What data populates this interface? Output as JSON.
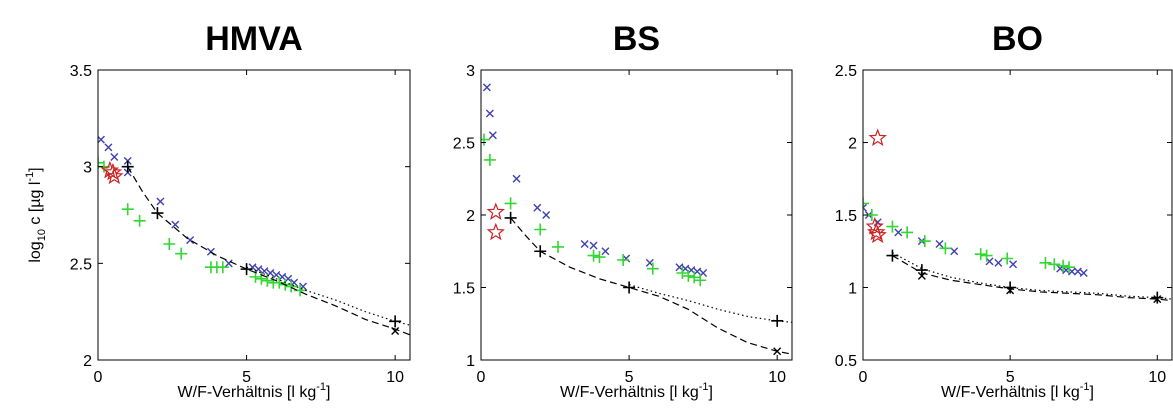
{
  "figure": {
    "ylabel": {
      "base": "log",
      "sub": "10",
      "rest": " c [µg l",
      "sup": "-1",
      "close": "]"
    },
    "xlabel": {
      "text": "W/F-Verhältnis [l kg",
      "sup": "-1",
      "close": "]"
    }
  },
  "colors": {
    "blue_x": "#4040b0",
    "green_plus": "#33d633",
    "red_star": "#cc2222",
    "black": "#000000"
  },
  "chart_data": [
    {
      "type": "scatter",
      "title": "HMVA",
      "xlim": [
        0,
        10.5
      ],
      "ylim": [
        2,
        3.5
      ],
      "xticks": [
        0,
        5,
        10
      ],
      "xtick_labels": [
        "0",
        "5",
        "10"
      ],
      "yticks": [
        2,
        2.5,
        3,
        3.5
      ],
      "ytick_labels": [
        "2",
        "2.5",
        "3",
        "3.5"
      ],
      "series": [
        {
          "marker": "x",
          "color": "#4040b0",
          "points": [
            [
              0.1,
              3.14
            ],
            [
              0.35,
              3.1
            ],
            [
              0.55,
              3.05
            ],
            [
              1.0,
              3.03
            ],
            [
              1.0,
              2.97
            ],
            [
              2.1,
              2.82
            ],
            [
              2.6,
              2.7
            ],
            [
              3.1,
              2.62
            ],
            [
              3.8,
              2.56
            ],
            [
              4.4,
              2.5
            ],
            [
              5.2,
              2.48
            ],
            [
              5.4,
              2.47
            ],
            [
              5.6,
              2.46
            ],
            [
              5.8,
              2.45
            ],
            [
              6.0,
              2.44
            ],
            [
              6.2,
              2.43
            ],
            [
              6.4,
              2.42
            ],
            [
              6.6,
              2.4
            ],
            [
              6.9,
              2.38
            ]
          ]
        },
        {
          "marker": "+",
          "color": "#33d633",
          "points": [
            [
              0.0,
              3.02
            ],
            [
              0.2,
              3.0
            ],
            [
              1.0,
              2.78
            ],
            [
              1.4,
              2.72
            ],
            [
              2.4,
              2.6
            ],
            [
              2.8,
              2.55
            ],
            [
              3.8,
              2.48
            ],
            [
              4.0,
              2.48
            ],
            [
              4.2,
              2.48
            ],
            [
              5.3,
              2.43
            ],
            [
              5.5,
              2.42
            ],
            [
              5.7,
              2.41
            ],
            [
              5.9,
              2.4
            ],
            [
              6.1,
              2.4
            ],
            [
              6.3,
              2.39
            ],
            [
              6.5,
              2.38
            ],
            [
              6.8,
              2.36
            ]
          ]
        },
        {
          "marker": "star",
          "color": "#cc2222",
          "points": [
            [
              0.4,
              2.98
            ],
            [
              0.5,
              2.97
            ],
            [
              0.55,
              2.95
            ]
          ]
        },
        {
          "marker": "+",
          "color": "#000000",
          "points": [
            [
              1.0,
              3.0
            ],
            [
              2.0,
              2.76
            ],
            [
              5.0,
              2.47
            ],
            [
              10.0,
              2.2
            ]
          ]
        },
        {
          "marker": "x",
          "color": "#000000",
          "points": [
            [
              10.0,
              2.15
            ]
          ]
        },
        {
          "line": "dashed",
          "color": "#000000",
          "points": [
            [
              1.0,
              3.0
            ],
            [
              1.5,
              2.87
            ],
            [
              2.0,
              2.76
            ],
            [
              3.0,
              2.63
            ],
            [
              4.0,
              2.54
            ],
            [
              5.0,
              2.47
            ],
            [
              6.0,
              2.41
            ],
            [
              7.0,
              2.34
            ],
            [
              8.0,
              2.28
            ],
            [
              9.0,
              2.21
            ],
            [
              10.0,
              2.16
            ],
            [
              10.5,
              2.13
            ]
          ]
        },
        {
          "line": "dotted",
          "color": "#000000",
          "points": [
            [
              5.0,
              2.48
            ],
            [
              6.0,
              2.42
            ],
            [
              7.0,
              2.36
            ],
            [
              8.0,
              2.31
            ],
            [
              9.0,
              2.25
            ],
            [
              10.0,
              2.2
            ],
            [
              10.5,
              2.18
            ]
          ]
        }
      ]
    },
    {
      "type": "scatter",
      "title": "BS",
      "xlim": [
        0,
        10.5
      ],
      "ylim": [
        1,
        3
      ],
      "xticks": [
        0,
        5,
        10
      ],
      "xtick_labels": [
        "0",
        "5",
        "10"
      ],
      "yticks": [
        1,
        1.5,
        2,
        2.5,
        3
      ],
      "ytick_labels": [
        "1",
        "1.5",
        "2",
        "2.5",
        "3"
      ],
      "series": [
        {
          "marker": "x",
          "color": "#4040b0",
          "points": [
            [
              0.2,
              2.88
            ],
            [
              0.3,
              2.7
            ],
            [
              0.4,
              2.55
            ],
            [
              1.2,
              2.25
            ],
            [
              1.9,
              2.05
            ],
            [
              2.2,
              2.0
            ],
            [
              3.5,
              1.8
            ],
            [
              3.8,
              1.79
            ],
            [
              4.2,
              1.75
            ],
            [
              4.9,
              1.7
            ],
            [
              5.7,
              1.67
            ],
            [
              6.7,
              1.64
            ],
            [
              6.9,
              1.63
            ],
            [
              7.1,
              1.62
            ],
            [
              7.3,
              1.61
            ],
            [
              7.5,
              1.6
            ]
          ]
        },
        {
          "marker": "+",
          "color": "#33d633",
          "points": [
            [
              0.1,
              2.52
            ],
            [
              0.3,
              2.38
            ],
            [
              1.0,
              2.08
            ],
            [
              2.0,
              1.9
            ],
            [
              2.6,
              1.78
            ],
            [
              3.8,
              1.72
            ],
            [
              4.0,
              1.71
            ],
            [
              4.8,
              1.69
            ],
            [
              5.8,
              1.63
            ],
            [
              6.8,
              1.6
            ],
            [
              7.0,
              1.58
            ],
            [
              7.2,
              1.57
            ],
            [
              7.4,
              1.55
            ]
          ]
        },
        {
          "marker": "star",
          "color": "#cc2222",
          "points": [
            [
              0.5,
              2.02
            ],
            [
              0.5,
              1.88
            ]
          ]
        },
        {
          "marker": "+",
          "color": "#000000",
          "points": [
            [
              1.0,
              1.98
            ],
            [
              2.0,
              1.75
            ],
            [
              5.0,
              1.5
            ],
            [
              10.0,
              1.27
            ]
          ]
        },
        {
          "marker": "x",
          "color": "#000000",
          "points": [
            [
              10.0,
              1.06
            ]
          ]
        },
        {
          "line": "dashed",
          "color": "#000000",
          "points": [
            [
              1.0,
              1.98
            ],
            [
              1.5,
              1.86
            ],
            [
              2.0,
              1.75
            ],
            [
              3.0,
              1.64
            ],
            [
              4.0,
              1.56
            ],
            [
              5.0,
              1.5
            ],
            [
              6.0,
              1.44
            ],
            [
              7.0,
              1.35
            ],
            [
              8.0,
              1.22
            ],
            [
              9.0,
              1.12
            ],
            [
              10.0,
              1.06
            ],
            [
              10.5,
              1.04
            ]
          ]
        },
        {
          "line": "dotted",
          "color": "#000000",
          "points": [
            [
              5.0,
              1.52
            ],
            [
              6.0,
              1.46
            ],
            [
              7.0,
              1.41
            ],
            [
              8.0,
              1.35
            ],
            [
              9.0,
              1.3
            ],
            [
              10.0,
              1.27
            ],
            [
              10.5,
              1.26
            ]
          ]
        }
      ]
    },
    {
      "type": "scatter",
      "title": "BO",
      "xlim": [
        0,
        10.5
      ],
      "ylim": [
        0.5,
        2.5
      ],
      "xticks": [
        0,
        5,
        10
      ],
      "xtick_labels": [
        "0",
        "5",
        "10"
      ],
      "yticks": [
        0.5,
        1,
        1.5,
        2,
        2.5
      ],
      "ytick_labels": [
        "0.5",
        "1",
        "1.5",
        "2",
        "2.5"
      ],
      "series": [
        {
          "marker": "x",
          "color": "#4040b0",
          "points": [
            [
              0.0,
              1.55
            ],
            [
              0.2,
              1.5
            ],
            [
              0.5,
              1.45
            ],
            [
              1.2,
              1.38
            ],
            [
              2.0,
              1.32
            ],
            [
              2.6,
              1.3
            ],
            [
              3.1,
              1.25
            ],
            [
              4.3,
              1.18
            ],
            [
              4.6,
              1.17
            ],
            [
              5.1,
              1.16
            ],
            [
              6.7,
              1.13
            ],
            [
              6.9,
              1.12
            ],
            [
              7.1,
              1.11
            ],
            [
              7.3,
              1.11
            ],
            [
              7.5,
              1.1
            ]
          ]
        },
        {
          "marker": "+",
          "color": "#33d633",
          "points": [
            [
              0.0,
              1.58
            ],
            [
              0.3,
              1.5
            ],
            [
              1.0,
              1.42
            ],
            [
              1.5,
              1.38
            ],
            [
              2.1,
              1.32
            ],
            [
              2.8,
              1.27
            ],
            [
              4.0,
              1.23
            ],
            [
              4.2,
              1.22
            ],
            [
              4.9,
              1.2
            ],
            [
              6.2,
              1.17
            ],
            [
              6.5,
              1.16
            ],
            [
              6.8,
              1.15
            ],
            [
              7.0,
              1.14
            ]
          ]
        },
        {
          "marker": "star",
          "color": "#cc2222",
          "points": [
            [
              0.5,
              2.03
            ],
            [
              0.4,
              1.42
            ],
            [
              0.45,
              1.38
            ],
            [
              0.5,
              1.36
            ]
          ]
        },
        {
          "marker": "+",
          "color": "#000000",
          "points": [
            [
              1.0,
              1.22
            ],
            [
              2.0,
              1.12
            ],
            [
              5.0,
              1.0
            ],
            [
              10.0,
              0.93
            ]
          ]
        },
        {
          "marker": "x",
          "color": "#000000",
          "points": [
            [
              2.0,
              1.08
            ],
            [
              5.0,
              0.98
            ],
            [
              10.0,
              0.92
            ]
          ]
        },
        {
          "line": "dashed",
          "color": "#000000",
          "points": [
            [
              1.0,
              1.22
            ],
            [
              2.0,
              1.1
            ],
            [
              3.0,
              1.05
            ],
            [
              4.0,
              1.02
            ],
            [
              5.0,
              0.99
            ],
            [
              6.0,
              0.97
            ],
            [
              7.0,
              0.96
            ],
            [
              8.0,
              0.95
            ],
            [
              9.0,
              0.93
            ],
            [
              10.0,
              0.92
            ],
            [
              10.5,
              0.91
            ]
          ]
        },
        {
          "line": "dotted",
          "color": "#000000",
          "points": [
            [
              1.0,
              1.24
            ],
            [
              2.0,
              1.13
            ],
            [
              3.0,
              1.07
            ],
            [
              4.0,
              1.03
            ],
            [
              5.0,
              1.0
            ],
            [
              6.0,
              0.98
            ],
            [
              7.0,
              0.97
            ],
            [
              8.0,
              0.96
            ],
            [
              9.0,
              0.94
            ],
            [
              10.0,
              0.93
            ],
            [
              10.5,
              0.92
            ]
          ]
        }
      ]
    }
  ]
}
